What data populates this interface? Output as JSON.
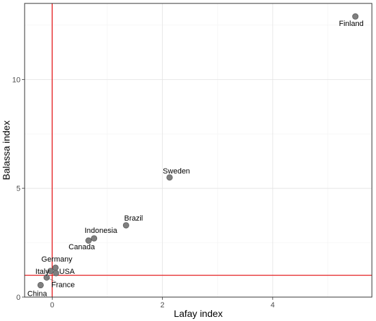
{
  "chart_data": {
    "type": "scatter",
    "xlabel": "Lafay index",
    "ylabel": "Balassa index",
    "xlim": [
      -0.5,
      5.8
    ],
    "ylim": [
      0,
      13.5
    ],
    "x_ticks": [
      0,
      2,
      4
    ],
    "x_tick_labels": [
      "0",
      "2",
      "4"
    ],
    "y_ticks": [
      0,
      5,
      10
    ],
    "y_tick_labels": [
      "0",
      "5",
      "10"
    ],
    "grid": true,
    "point_color": "#7f7f7f",
    "reference_line_color": "#e41a1c",
    "reference_lines": {
      "x": 0,
      "y": 1
    },
    "points": [
      {
        "label": "Finland",
        "x": 5.5,
        "y": 12.9
      },
      {
        "label": "Sweden",
        "x": 2.13,
        "y": 5.5
      },
      {
        "label": "Brazil",
        "x": 1.34,
        "y": 3.3
      },
      {
        "label": "Indonesia",
        "x": 0.76,
        "y": 2.7
      },
      {
        "label": "Canada",
        "x": 0.66,
        "y": 2.6
      },
      {
        "label": "Germany",
        "x": 0.06,
        "y": 1.35
      },
      {
        "label": "Italy",
        "x": -0.03,
        "y": 1.2
      },
      {
        "label": "USA",
        "x": 0.07,
        "y": 1.1
      },
      {
        "label": "France",
        "x": -0.1,
        "y": 0.9
      },
      {
        "label": "China",
        "x": -0.21,
        "y": 0.55
      }
    ]
  }
}
